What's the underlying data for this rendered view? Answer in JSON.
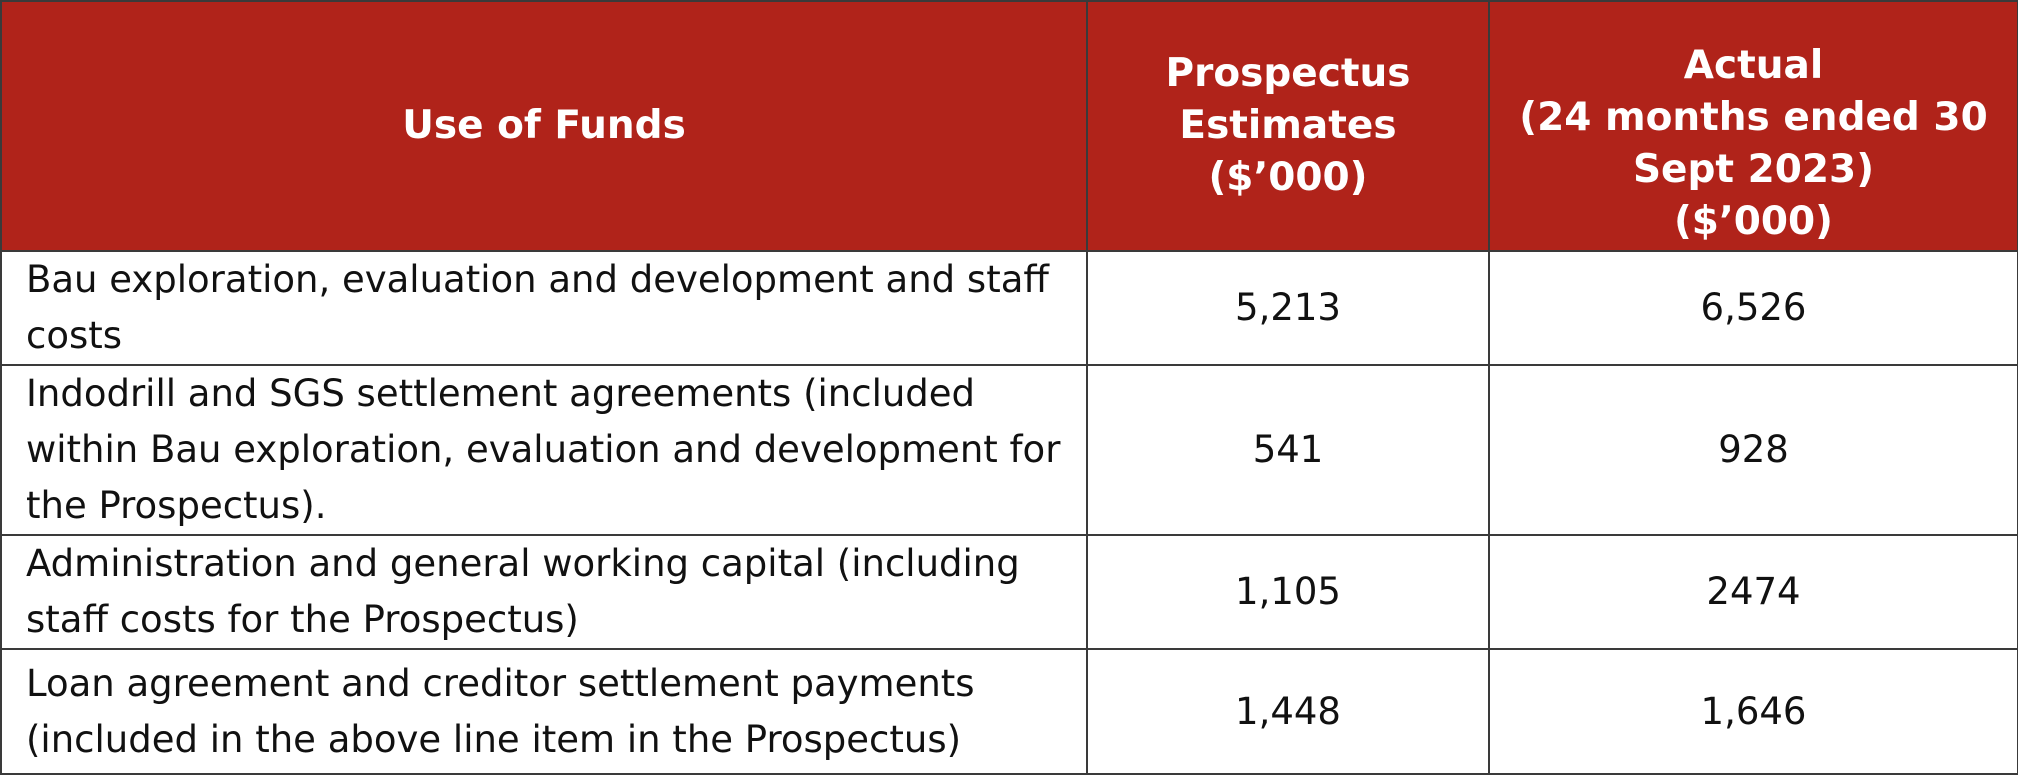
{
  "table": {
    "headers": {
      "use_of_funds": "Use of Funds",
      "prospectus": [
        "Prospectus",
        "Estimates",
        "($’000)"
      ],
      "actual": [
        "Actual",
        "(24 months ended 30",
        "Sept 2023)",
        "($’000)"
      ]
    },
    "rows": [
      {
        "use": "Bau exploration, evaluation and development and staff costs",
        "estimate": "5,213",
        "actual": "6,526"
      },
      {
        "use": "Indodrill and SGS settlement agreements (included within Bau exploration, evaluation and development for the Prospectus).",
        "estimate": "541",
        "actual": "928"
      },
      {
        "use": "Administration and general working capital (including staff costs for the Prospectus)",
        "estimate": "1,105",
        "actual": "2474"
      },
      {
        "use": "Loan agreement and creditor settlement payments (included in the above line item in the Prospectus)",
        "estimate": "1,448",
        "actual": "1,646"
      }
    ],
    "colors": {
      "header_background": "#b0231a",
      "header_text": "#ffffff",
      "border": "#3a3a3a"
    }
  }
}
